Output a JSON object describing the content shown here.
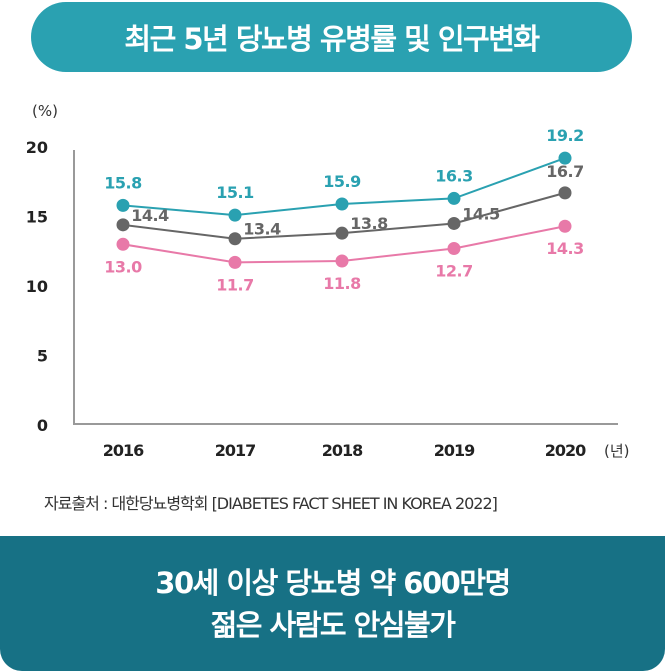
{
  "header": {
    "title": "최근 5년 당뇨병 유병률 및 인구변화"
  },
  "chart_data": {
    "type": "line",
    "ylabel": "(%)",
    "xlabel": "(년)",
    "ylim": [
      0,
      20
    ],
    "yticks": [
      "0",
      "5",
      "10",
      "15",
      "20"
    ],
    "categories": [
      "2016",
      "2017",
      "2018",
      "2019",
      "2020"
    ],
    "series": [
      {
        "values": [
          15.8,
          15.1,
          15.9,
          16.3,
          19.2
        ],
        "color": "#2aa1b1"
      },
      {
        "values": [
          14.4,
          13.4,
          13.8,
          14.5,
          16.7
        ],
        "color": "#666666"
      },
      {
        "values": [
          13.0,
          11.7,
          11.8,
          12.7,
          14.3
        ],
        "color": "#e879a8"
      }
    ],
    "grid": false
  },
  "source": "자료출처 : 대한당뇨병학회  [DIABETES FACT SHEET IN KOREA 2022]",
  "footer": {
    "line1": "30세 이상 당뇨병 약 600만명",
    "line2": "젊은 사람도 안심불가"
  }
}
